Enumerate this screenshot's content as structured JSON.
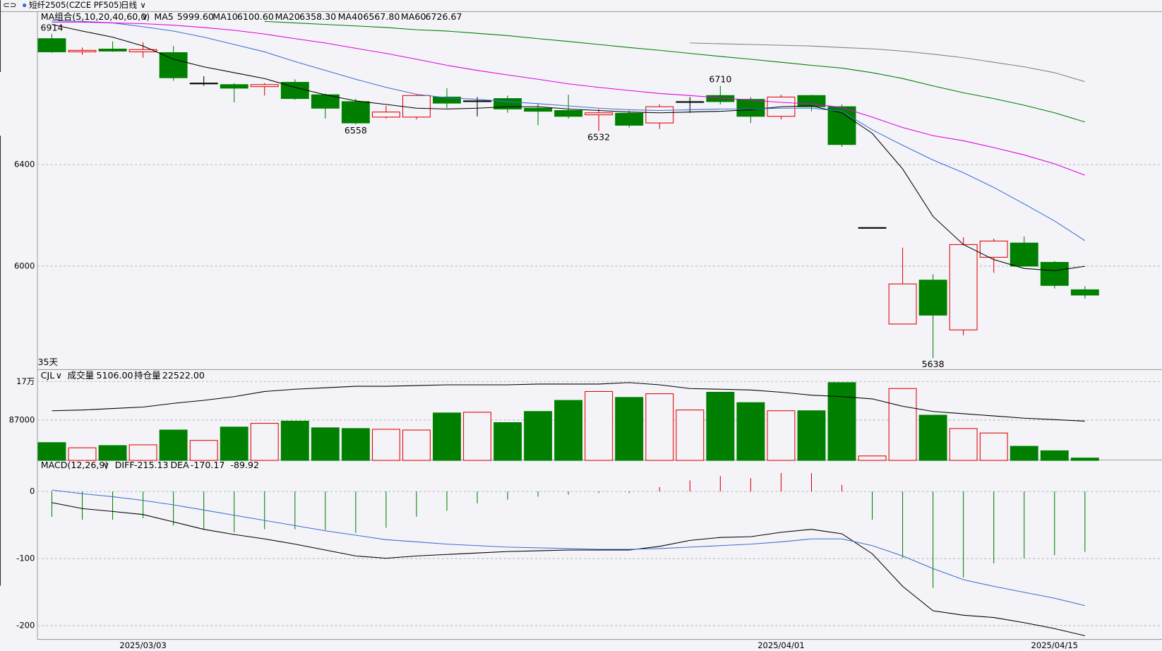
{
  "header": {
    "symbol": "短纤2505(CZCE PF505)",
    "period": "日线"
  },
  "chart_data": [
    {
      "type": "candlestick",
      "title": "MA组合(5,10,20,40,60,0)",
      "span_label": "35天",
      "up_color": "#e00000",
      "down_color": "#007f00",
      "doji_color": "#000000",
      "open": [
        6896,
        6844,
        6855,
        6844,
        6841,
        6718,
        6715,
        6707,
        6724,
        6675,
        6648,
        6587,
        6587,
        6666,
        6648,
        6660,
        6622,
        6613,
        6596,
        6602,
        6564,
        6645,
        6672,
        6657,
        6590,
        6672,
        6628,
        6152,
        5772,
        5945,
        5749,
        6035,
        6091,
        6015,
        5907
      ],
      "high": [
        6914,
        6861,
        6885,
        6882,
        6867,
        6748,
        6721,
        6721,
        6736,
        6680,
        6660,
        6631,
        6675,
        6701,
        6666,
        6672,
        6642,
        6675,
        6619,
        6613,
        6637,
        6666,
        6710,
        6666,
        6675,
        6675,
        6637,
        6152,
        6073,
        5968,
        6114,
        6108,
        6117,
        6020,
        5921
      ],
      "low": [
        6840,
        6832,
        6844,
        6821,
        6730,
        6710,
        6645,
        6672,
        6655,
        6581,
        6558,
        6581,
        6578,
        6622,
        6590,
        6604,
        6555,
        6581,
        6532,
        6546,
        6540,
        6604,
        6637,
        6564,
        6578,
        6610,
        6470,
        6152,
        5772,
        5638,
        5728,
        5974,
        6000,
        5912,
        5872
      ],
      "close": [
        6844,
        6850,
        6847,
        6853,
        6742,
        6721,
        6701,
        6715,
        6660,
        6622,
        6564,
        6607,
        6672,
        6642,
        6651,
        6619,
        6610,
        6590,
        6604,
        6555,
        6628,
        6648,
        6648,
        6590,
        6666,
        6628,
        6479,
        6152,
        5930,
        5807,
        6085,
        6099,
        6000,
        5924,
        5886
      ],
      "high_labels": [
        6914,
        null,
        null,
        null,
        null,
        null,
        null,
        null,
        null,
        null,
        null,
        null,
        null,
        null,
        null,
        null,
        null,
        null,
        null,
        null,
        null,
        null,
        6710,
        null,
        null,
        null,
        null,
        null,
        null,
        null,
        null,
        null,
        null,
        null,
        null
      ],
      "low_labels": [
        null,
        null,
        null,
        null,
        null,
        null,
        null,
        null,
        null,
        null,
        6558,
        null,
        null,
        null,
        null,
        null,
        null,
        null,
        6532,
        null,
        null,
        null,
        null,
        null,
        null,
        null,
        null,
        null,
        null,
        5638,
        null,
        null,
        null,
        null,
        null
      ],
      "series": [
        {
          "name": "MA5",
          "color": "#000000",
          "values": [
            6952,
            6926,
            6902,
            6867,
            6815,
            6785,
            6762,
            6739,
            6704,
            6675,
            6651,
            6637,
            6622,
            6619,
            6622,
            6628,
            6628,
            6619,
            6613,
            6607,
            6604,
            6607,
            6610,
            6616,
            6628,
            6631,
            6604,
            6523,
            6383,
            6196,
            6085,
            6026,
            5991,
            5982,
            5999.6
          ],
          "value_labels": [
            null,
            null,
            null,
            null,
            null,
            null,
            null,
            null,
            null,
            null,
            null,
            null,
            null,
            null,
            null,
            null,
            null,
            null,
            null,
            null,
            null,
            null,
            null,
            null,
            null,
            null,
            null,
            null,
            null,
            null,
            null,
            null,
            null,
            null,
            "5999.60"
          ]
        },
        {
          "name": "MA10",
          "color": "#3c6ed2",
          "values": [
            6967,
            6964,
            6958,
            6943,
            6926,
            6902,
            6873,
            6844,
            6806,
            6771,
            6736,
            6704,
            6677,
            6663,
            6657,
            6648,
            6640,
            6631,
            6622,
            6616,
            6613,
            6616,
            6619,
            6619,
            6622,
            6622,
            6610,
            6537,
            6476,
            6418,
            6368,
            6310,
            6245,
            6178,
            6100.6
          ],
          "value_labels": [
            null,
            null,
            null,
            null,
            null,
            null,
            null,
            null,
            null,
            null,
            null,
            null,
            null,
            null,
            null,
            null,
            null,
            null,
            null,
            null,
            null,
            null,
            null,
            null,
            null,
            null,
            null,
            null,
            null,
            null,
            null,
            null,
            null,
            null,
            "6100.60"
          ]
        },
        {
          "name": "MA20",
          "color": "#e000e0",
          "values": [
            6961,
            6961,
            6958,
            6955,
            6949,
            6940,
            6929,
            6914,
            6896,
            6879,
            6858,
            6838,
            6815,
            6791,
            6771,
            6753,
            6736,
            6718,
            6704,
            6692,
            6680,
            6672,
            6663,
            6654,
            6645,
            6639,
            6625,
            6587,
            6546,
            6514,
            6494,
            6467,
            6438,
            6403,
            6358.3
          ],
          "value_labels": [
            null,
            null,
            null,
            null,
            null,
            null,
            null,
            null,
            null,
            null,
            null,
            null,
            null,
            null,
            null,
            null,
            null,
            null,
            null,
            null,
            null,
            null,
            null,
            null,
            null,
            null,
            null,
            null,
            null,
            null,
            null,
            null,
            null,
            null,
            "6358.30"
          ]
        },
        {
          "name": "MA40",
          "color": "#007f00",
          "values": [
            null,
            null,
            null,
            null,
            null,
            null,
            null,
            6964,
            6958,
            6952,
            6946,
            6940,
            6931,
            6926,
            6917,
            6908,
            6896,
            6885,
            6873,
            6861,
            6850,
            6838,
            6826,
            6815,
            6803,
            6791,
            6780,
            6762,
            6739,
            6710,
            6683,
            6660,
            6634,
            6604,
            6567.8
          ],
          "value_labels": [
            null,
            null,
            null,
            null,
            null,
            null,
            null,
            null,
            null,
            null,
            null,
            null,
            null,
            null,
            null,
            null,
            null,
            null,
            null,
            null,
            null,
            null,
            null,
            null,
            null,
            null,
            null,
            null,
            null,
            null,
            null,
            null,
            null,
            null,
            "6567.80"
          ]
        },
        {
          "name": "MA60",
          "color": "#808080",
          "values": [
            null,
            null,
            null,
            null,
            null,
            null,
            null,
            null,
            null,
            null,
            null,
            null,
            null,
            null,
            null,
            null,
            null,
            null,
            null,
            null,
            null,
            6879,
            6876,
            6873,
            6870,
            6867,
            6861,
            6856,
            6847,
            6835,
            6821,
            6803,
            6785,
            6762,
            6726.67
          ],
          "value_labels": [
            null,
            null,
            null,
            null,
            null,
            null,
            null,
            null,
            null,
            null,
            null,
            null,
            null,
            null,
            null,
            null,
            null,
            null,
            null,
            null,
            null,
            null,
            null,
            null,
            null,
            null,
            null,
            null,
            null,
            null,
            null,
            null,
            null,
            null,
            "6726.67"
          ]
        }
      ],
      "ylim": [
        5594,
        7004
      ],
      "yticks": [
        6000,
        6400
      ],
      "grid": true
    },
    {
      "type": "bar",
      "title": "CJL",
      "series": [
        {
          "name": "成交量",
          "values": [
            38400,
            27200,
            32000,
            33600,
            65500,
            43100,
            71900,
            79900,
            84700,
            70300,
            68700,
            67100,
            65500,
            102300,
            103900,
            81500,
            105500,
            129400,
            148600,
            135800,
            143800,
            108700,
            147000,
            124600,
            107100,
            107100,
            167800,
            9600,
            155000,
            97500,
            68700,
            59100,
            30400,
            20800,
            5106
          ],
          "value_labels": [
            null,
            null,
            null,
            null,
            null,
            null,
            null,
            null,
            null,
            null,
            null,
            null,
            null,
            null,
            null,
            null,
            null,
            null,
            null,
            null,
            null,
            null,
            null,
            null,
            null,
            null,
            null,
            null,
            null,
            null,
            null,
            null,
            null,
            null,
            "5106.00"
          ]
        },
        {
          "name": "持仓量",
          "color": "#000000",
          "axis": "y2",
          "values": [
            28470,
            28890,
            29740,
            30590,
            32720,
            34420,
            36540,
            39520,
            40790,
            41640,
            42490,
            42490,
            42910,
            43340,
            43340,
            43340,
            43760,
            43760,
            43760,
            44610,
            43340,
            41220,
            40790,
            40370,
            39090,
            37390,
            36540,
            35270,
            31020,
            28040,
            26770,
            25490,
            24220,
            23370,
            22522
          ],
          "value_labels": [
            null,
            null,
            null,
            null,
            null,
            null,
            null,
            null,
            null,
            null,
            null,
            null,
            null,
            null,
            null,
            null,
            null,
            null,
            null,
            null,
            null,
            null,
            null,
            null,
            null,
            null,
            null,
            null,
            null,
            null,
            null,
            null,
            null,
            null,
            "22522.00"
          ]
        }
      ],
      "ylim": [
        0,
        195000
      ],
      "yticks": [
        87000,
        {
          "value": 170000,
          "label": "17万"
        }
      ],
      "y2lim": [
        0,
        51840
      ],
      "grid": true
    },
    {
      "type": "macd",
      "title": "MACD(12,26,9)",
      "categories": [
        null,
        null,
        null,
        "2025/03/03",
        null,
        null,
        null,
        null,
        null,
        null,
        null,
        null,
        null,
        null,
        null,
        null,
        null,
        null,
        null,
        null,
        null,
        null,
        null,
        null,
        "2025/04/01",
        null,
        null,
        null,
        null,
        null,
        null,
        null,
        null,
        "2025/04/15",
        null
      ],
      "series": [
        {
          "name": "DIFF",
          "color": "#000000",
          "values": [
            -16.6,
            -25.4,
            -29.8,
            -34.3,
            -45.3,
            -56.4,
            -64.1,
            -70.7,
            -78.5,
            -87.3,
            -96.1,
            -99.5,
            -96.1,
            -93.9,
            -91.7,
            -89.5,
            -88.4,
            -87.3,
            -87.3,
            -87.3,
            -81.8,
            -72.9,
            -68.5,
            -67.4,
            -60.8,
            -56.4,
            -63,
            -92.8,
            -141.4,
            -177.9,
            -184.5,
            -187.9,
            -195.6,
            -204.4,
            -215.13
          ]
        },
        {
          "name": "DEA",
          "color": "#3c6ed2",
          "values": [
            2.2,
            -3.3,
            -7.7,
            -13.3,
            -19.9,
            -27.6,
            -35.4,
            -43.1,
            -50.8,
            -58.6,
            -65.2,
            -71.8,
            -75.1,
            -78.5,
            -80.7,
            -82.9,
            -84,
            -85.1,
            -86.2,
            -86.2,
            -85.1,
            -82.9,
            -80.7,
            -78.5,
            -75.1,
            -70.7,
            -70.7,
            -80.7,
            -96.1,
            -114.9,
            -131.5,
            -141.4,
            -150.3,
            -159.1,
            -170.17
          ]
        }
      ],
      "histogram": {
        "up_color": "#e00000",
        "down_color": "#007f00",
        "values": [
          -37.6,
          -42,
          -42,
          -39.8,
          -50.8,
          -56.4,
          -60.8,
          -56.4,
          -56.4,
          -57.5,
          -61.9,
          -54.1,
          -37.6,
          -28.7,
          -17.7,
          -12.2,
          -7.7,
          -4.4,
          -2.2,
          -2.2,
          6.6,
          16.6,
          23.2,
          19.9,
          27.6,
          27.6,
          9.9,
          -42,
          -99.5,
          -143.7,
          -128.2,
          -107.2,
          -99.5,
          -95,
          -89.92
        ]
      },
      "ylim": [
        -220,
        47.5
      ],
      "yticks": [
        0,
        -100,
        -200
      ],
      "grid": true
    }
  ]
}
